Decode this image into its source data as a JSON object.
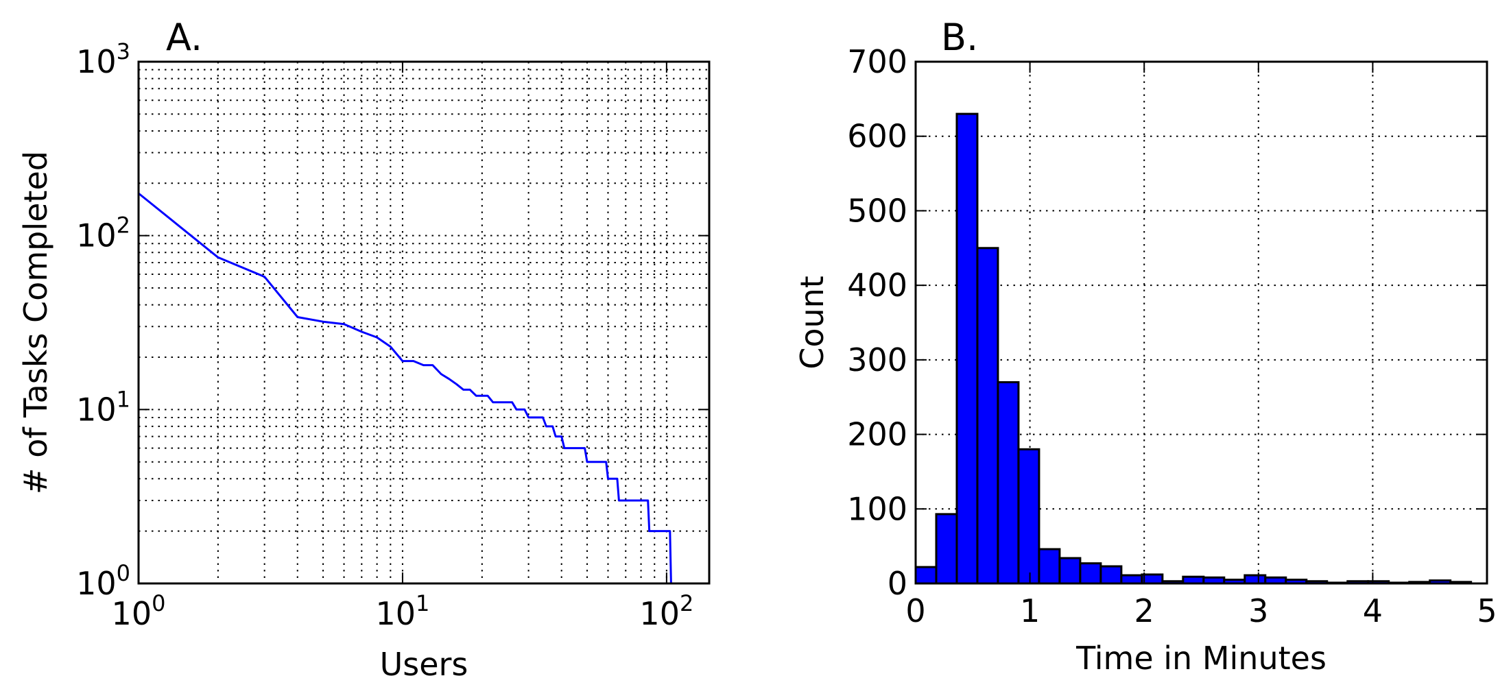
{
  "chart_data": [
    {
      "type": "line",
      "title": "A.",
      "xlabel": "Users",
      "ylabel": "# of Tasks Completed",
      "xscale": "log",
      "yscale": "log",
      "xlim": [
        1,
        145
      ],
      "ylim": [
        1,
        1000
      ],
      "xticks": [
        {
          "value": 1,
          "base": "10",
          "exp": "0"
        },
        {
          "value": 10,
          "base": "10",
          "exp": "1"
        },
        {
          "value": 100,
          "base": "10",
          "exp": "2"
        }
      ],
      "yticks": [
        {
          "value": 1,
          "base": "10",
          "exp": "0"
        },
        {
          "value": 10,
          "base": "10",
          "exp": "1"
        },
        {
          "value": 100,
          "base": "10",
          "exp": "2"
        },
        {
          "value": 1000,
          "base": "10",
          "exp": "3"
        }
      ],
      "grid": true,
      "color": "#0000ff",
      "series": [
        {
          "x": [
            1,
            2,
            3,
            4,
            5,
            6,
            7,
            8,
            9,
            10,
            11,
            12,
            13,
            14,
            15,
            16,
            17,
            18,
            19,
            20,
            21,
            22,
            23,
            24,
            25,
            26,
            27,
            28,
            29,
            30,
            31,
            32,
            33,
            34,
            35,
            36,
            37,
            38,
            39,
            40,
            41,
            42,
            43,
            44,
            45,
            46,
            47,
            48,
            49,
            50,
            51,
            52,
            53,
            54,
            55,
            56,
            57,
            58,
            59,
            60,
            61,
            62,
            63,
            64,
            65,
            66,
            67,
            68,
            69,
            70,
            71,
            72,
            73,
            74,
            75,
            76,
            77,
            78,
            79,
            80,
            81,
            82,
            83,
            84,
            85,
            86,
            87,
            88,
            89,
            90,
            91,
            92,
            93,
            94,
            95,
            96,
            97,
            98,
            99,
            100,
            101,
            102,
            103,
            104,
            105
          ],
          "y": [
            175,
            75,
            58,
            34,
            32,
            31,
            28,
            26,
            23,
            19,
            19,
            18,
            18,
            16,
            15,
            14,
            13,
            13,
            12,
            12,
            12,
            11,
            11,
            11,
            11,
            11,
            10,
            10,
            10,
            9,
            9,
            9,
            9,
            9,
            8,
            8,
            8,
            7,
            7,
            7,
            6,
            6,
            6,
            6,
            6,
            6,
            6,
            6,
            6,
            5,
            5,
            5,
            5,
            5,
            5,
            5,
            5,
            5,
            5,
            4,
            4,
            4,
            4,
            4,
            4,
            3,
            3,
            3,
            3,
            3,
            3,
            3,
            3,
            3,
            3,
            3,
            3,
            3,
            3,
            3,
            3,
            3,
            3,
            3,
            3,
            2,
            2,
            2,
            2,
            2,
            2,
            2,
            2,
            2,
            2,
            2,
            2,
            2,
            2,
            2,
            2,
            2,
            2,
            1,
            1
          ]
        }
      ]
    },
    {
      "type": "bar",
      "title": "B.",
      "xlabel": "Time in Minutes",
      "ylabel": "Count",
      "xlim": [
        0,
        5
      ],
      "ylim": [
        0,
        700
      ],
      "xticks": [
        "0",
        "1",
        "2",
        "3",
        "4",
        "5"
      ],
      "yticks": [
        "0",
        "100",
        "200",
        "300",
        "400",
        "500",
        "600",
        "700"
      ],
      "grid": true,
      "color": "#0000ff",
      "bin_edges": [
        0,
        0.18,
        0.36,
        0.54,
        0.72,
        0.9,
        1.08,
        1.26,
        1.44,
        1.62,
        1.8,
        1.98,
        2.16,
        2.34,
        2.52,
        2.7,
        2.88,
        3.06,
        3.24,
        3.42,
        3.6,
        3.78,
        3.96,
        4.14,
        4.32,
        4.5,
        4.68,
        4.86
      ],
      "values": [
        22,
        93,
        630,
        450,
        270,
        180,
        46,
        34,
        27,
        23,
        11,
        12,
        3,
        9,
        8,
        5,
        11,
        8,
        5,
        3,
        1,
        3,
        3,
        1,
        2,
        4,
        2
      ]
    }
  ]
}
